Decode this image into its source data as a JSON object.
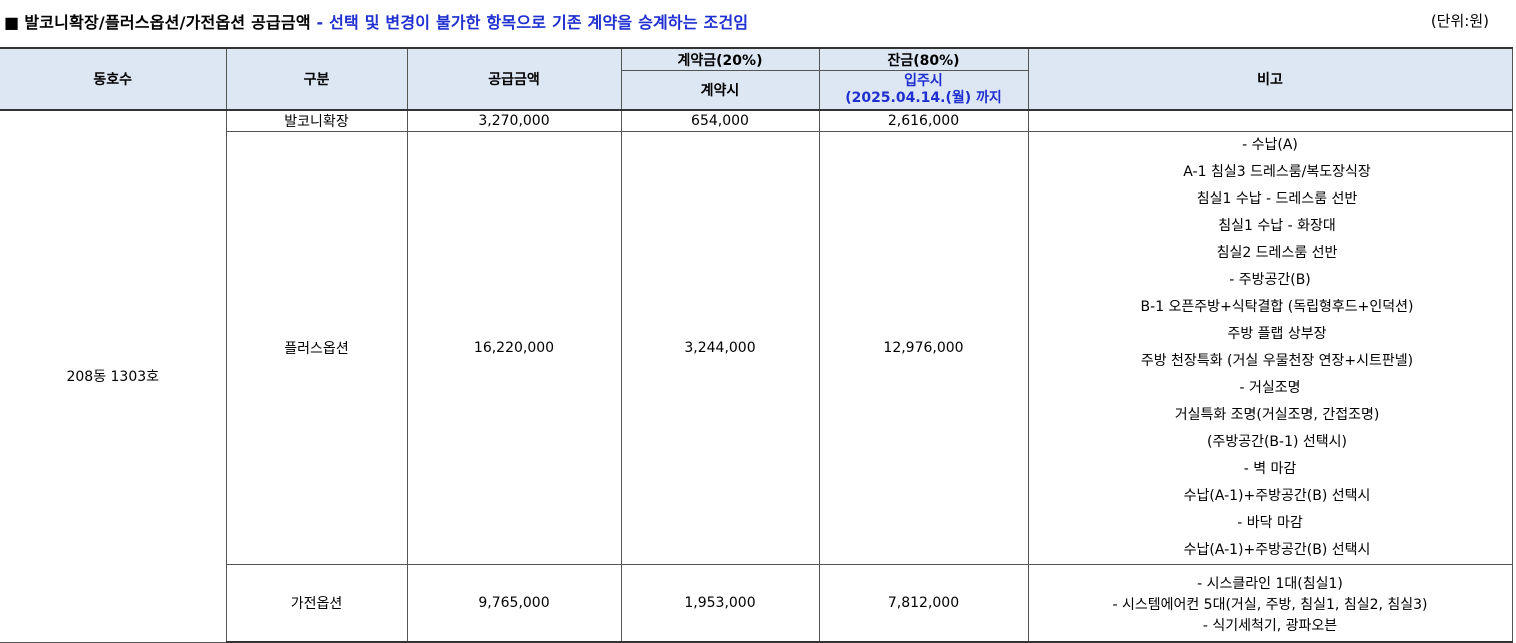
{
  "title": {
    "square": "■",
    "main": "발코니확장/플러스옵션/가전옵션 공급금액",
    "note": " - 선택 및 변경이 불가한 항목으로 기존 계약을 승계하는 조건임",
    "unit": "(단위:원)"
  },
  "colors": {
    "header_bg": "#dde6f3",
    "accent_blue": "#1f2fd0"
  },
  "headers": {
    "dong": "동호수",
    "category": "구분",
    "amount": "공급금액",
    "deposit_group": "계약금(20%)",
    "deposit_sub": "계약시",
    "balance_group": "잔금(80%)",
    "balance_sub_1": "입주시",
    "balance_sub_2": "(2025.04.14.(월) 까지",
    "remarks": "비고"
  },
  "unit_name": "208동 1303호",
  "rows": [
    {
      "category": "발코니확장",
      "amount": "3,270,000",
      "deposit": "654,000",
      "balance": "2,616,000",
      "remarks": []
    },
    {
      "category": "플러스옵션",
      "amount": "16,220,000",
      "deposit": "3,244,000",
      "balance": "12,976,000",
      "remarks": [
        "-  수납(A)",
        "A-1  침실3  드레스룸/복도장식장",
        "침실1  수납  -  드레스룸  선반",
        "침실1  수납  -  화장대",
        "침실2  드레스룸  선반",
        "-  주방공간(B)",
        "B-1  오픈주방+식탁결합  (독립형후드+인덕션)",
        "주방  플랩  상부장",
        "주방  천장특화  (거실  우물천장  연장+시트판넬)",
        "-  거실조명",
        "거실특화  조명(거실조명,  간접조명)",
        "(주방공간(B-1)  선택시)",
        "-  벽  마감",
        "수납(A-1)+주방공간(B)  선택시",
        "-  바닥  마감",
        "수납(A-1)+주방공간(B)  선택시"
      ]
    },
    {
      "category": "가전옵션",
      "amount": "9,765,000",
      "deposit": "1,953,000",
      "balance": "7,812,000",
      "remarks": [
        "-  시스클라인  1대(침실1)",
        "-  시스템에어컨  5대(거실,  주방,  침실1,  침실2,  침실3)",
        "-  식기세척기,  광파오븐"
      ]
    }
  ]
}
